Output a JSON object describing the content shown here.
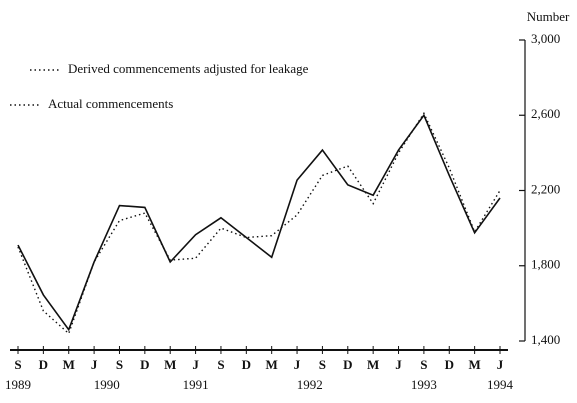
{
  "chart_data": {
    "type": "line",
    "y_axis_label": "Number",
    "categories": [
      "S",
      "D",
      "M",
      "J",
      "S",
      "D",
      "M",
      "J",
      "S",
      "D",
      "M",
      "J",
      "S",
      "D",
      "M",
      "J",
      "S",
      "D",
      "M",
      "J"
    ],
    "year_labels": [
      "1989",
      "1990",
      "1991",
      "1992",
      "1993",
      "1994"
    ],
    "series": [
      {
        "name": "Derived commencements adjusted for leakage",
        "color": "#111111",
        "style": "solid",
        "values": [
          1910,
          1645,
          1460,
          1820,
          2120,
          2110,
          1820,
          1965,
          2055,
          1950,
          1845,
          2255,
          2415,
          2230,
          2175,
          2415,
          2600,
          2280,
          1975,
          2160
        ]
      },
      {
        "name": "Actual commencements",
        "color": "#111111",
        "style": "dotted",
        "values": [
          1900,
          1560,
          1440,
          1820,
          2040,
          2080,
          1830,
          1840,
          2000,
          1950,
          1960,
          2070,
          2280,
          2330,
          2130,
          2400,
          2610,
          2320,
          1980,
          2200
        ]
      }
    ],
    "ylim": [
      1400,
      3000
    ],
    "yticks": [
      {
        "value": 1400,
        "label": "1,400"
      },
      {
        "value": 1800,
        "label": "1,800"
      },
      {
        "value": 2200,
        "label": "2,200"
      },
      {
        "value": 2600,
        "label": "2,600"
      },
      {
        "value": 3000,
        "label": "3,000"
      }
    ]
  }
}
